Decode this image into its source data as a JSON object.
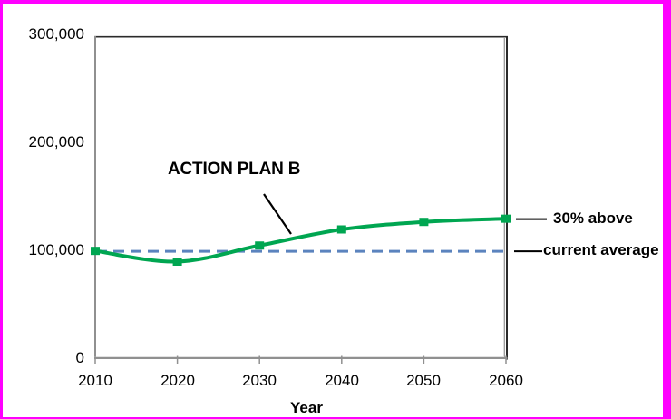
{
  "window": {
    "frame_color": "#FF00FF",
    "background": "#FFFFFF"
  },
  "chart_data": {
    "type": "line",
    "title": "",
    "xlabel": "Year",
    "ylabel": "",
    "x": [
      2010,
      2020,
      2030,
      2040,
      2050,
      2060
    ],
    "xtick_labels": [
      "2010",
      "2020",
      "2030",
      "2040",
      "2050",
      "2060"
    ],
    "ytick_labels_top_down": [
      "300,000",
      "200,000",
      "100,000",
      "0"
    ],
    "xlim": [
      2010,
      2060
    ],
    "ylim": [
      0,
      300000
    ],
    "grid": false,
    "legend": "none",
    "series": [
      {
        "name": "ACTION PLAN B",
        "color": "#00A651",
        "marker": "square",
        "smooth": true,
        "values": [
          100000,
          90000,
          105000,
          120000,
          127000,
          130000
        ]
      }
    ],
    "reference_line": {
      "label": "current average",
      "value": 100000,
      "color": "#5B83BE",
      "style": "dashed"
    },
    "annotations": {
      "series_callout": "ACTION PLAN B",
      "end_value_note": "30% above",
      "reference_note": "current average"
    },
    "axis_color": "#909090",
    "border_color": "#2B2B2B",
    "text_color": "#000000"
  }
}
